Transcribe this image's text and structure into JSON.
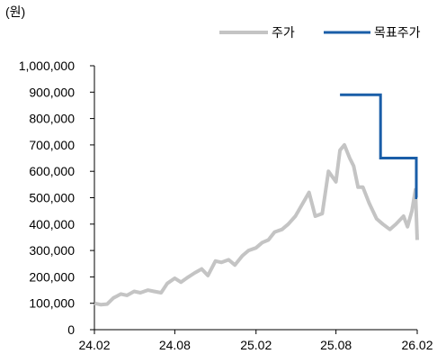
{
  "chart_data": {
    "type": "line",
    "unit_label": "(원)",
    "y_ticks": [
      "1,000,000",
      "900,000",
      "800,000",
      "700,000",
      "600,000",
      "500,000",
      "400,000",
      "300,000",
      "200,000",
      "100,000",
      "0"
    ],
    "y_tick_values": [
      1000000,
      900000,
      800000,
      700000,
      600000,
      500000,
      400000,
      300000,
      200000,
      100000,
      0
    ],
    "x_ticks": [
      "24.02",
      "24.08",
      "25.02",
      "25.08",
      "26.02"
    ],
    "x_tick_dates": [
      "2024-02-01",
      "2024-08-01",
      "2025-02-01",
      "2025-08-01",
      "2026-02-01"
    ],
    "ylim": [
      0,
      1000000
    ],
    "xlim": [
      "2024-02-01",
      "2026-02-01"
    ],
    "legend_position": "top-right",
    "grid": false,
    "series": [
      {
        "name": "주가",
        "color": "#c4c4c4",
        "x": [
          "2024-02-01",
          "2024-02-15",
          "2024-03-01",
          "2024-03-15",
          "2024-04-01",
          "2024-04-15",
          "2024-05-01",
          "2024-05-15",
          "2024-06-01",
          "2024-06-15",
          "2024-07-01",
          "2024-07-15",
          "2024-08-01",
          "2024-08-15",
          "2024-09-01",
          "2024-09-15",
          "2024-10-01",
          "2024-10-15",
          "2024-11-01",
          "2024-11-15",
          "2024-12-01",
          "2024-12-15",
          "2025-01-01",
          "2025-01-15",
          "2025-02-01",
          "2025-02-15",
          "2025-03-01",
          "2025-03-15",
          "2025-04-01",
          "2025-04-15",
          "2025-05-01",
          "2025-05-15",
          "2025-06-01",
          "2025-06-15",
          "2025-07-01",
          "2025-07-15",
          "2025-08-01",
          "2025-08-10",
          "2025-08-20",
          "2025-09-01",
          "2025-09-10",
          "2025-09-20",
          "2025-10-01",
          "2025-10-15",
          "2025-11-01",
          "2025-11-15",
          "2025-12-01",
          "2025-12-15",
          "2026-01-01",
          "2026-01-10",
          "2026-01-20",
          "2026-01-28",
          "2026-02-01"
        ],
        "values": [
          100000,
          95000,
          97000,
          120000,
          135000,
          130000,
          145000,
          140000,
          150000,
          145000,
          140000,
          175000,
          195000,
          180000,
          200000,
          215000,
          230000,
          205000,
          260000,
          255000,
          265000,
          245000,
          280000,
          300000,
          310000,
          330000,
          340000,
          370000,
          380000,
          400000,
          430000,
          470000,
          520000,
          430000,
          440000,
          600000,
          560000,
          680000,
          700000,
          650000,
          620000,
          540000,
          540000,
          480000,
          420000,
          400000,
          380000,
          400000,
          430000,
          390000,
          450000,
          530000,
          340000
        ]
      },
      {
        "name": "목표주가",
        "color": "#1a5ea8",
        "x": [
          "2025-08-10",
          "2025-11-10",
          "2025-11-10",
          "2026-01-30",
          "2026-01-30",
          "2026-02-01"
        ],
        "values": [
          890000,
          890000,
          650000,
          650000,
          500000,
          500000
        ]
      }
    ]
  }
}
